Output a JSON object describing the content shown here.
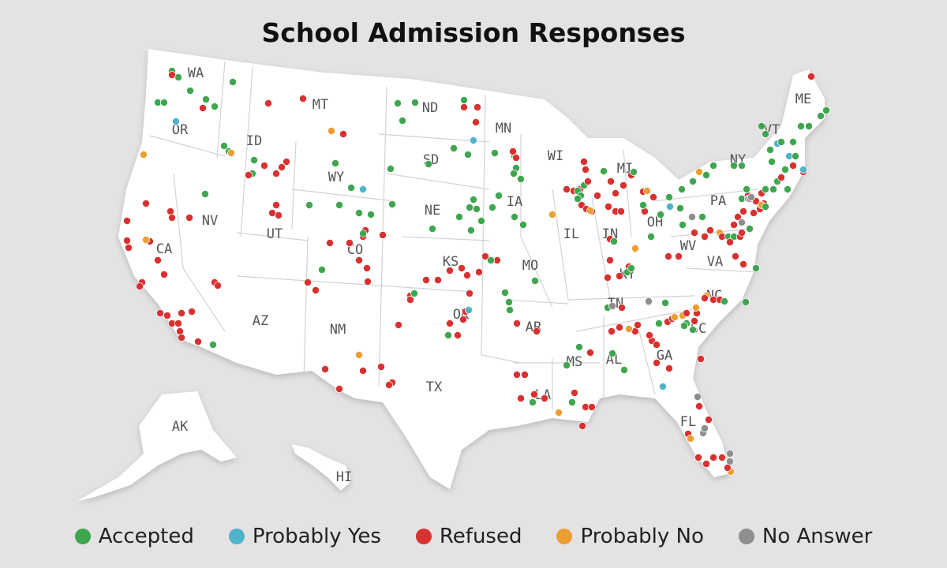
{
  "title": "School Admission Responses",
  "legend": [
    {
      "key": "accepted",
      "label": "Accepted",
      "color": "#3fa650"
    },
    {
      "key": "probably_yes",
      "label": "Probably Yes",
      "color": "#4fb3c9"
    },
    {
      "key": "refused",
      "label": "Refused",
      "color": "#d8312f"
    },
    {
      "key": "probably_no",
      "label": "Probably No",
      "color": "#eb9f33"
    },
    {
      "key": "no_answer",
      "label": "No Answer",
      "color": "#8e8e91"
    }
  ],
  "state_labels": [
    "WA",
    "OR",
    "ID",
    "MT",
    "ND",
    "MN",
    "WI",
    "MI",
    "ME",
    "VT",
    "NY",
    "SD",
    "WY",
    "NV",
    "CA",
    "UT",
    "CO",
    "NE",
    "IA",
    "IL",
    "IN",
    "OH",
    "PA",
    "KS",
    "MO",
    "KY",
    "WV",
    "VA",
    "AZ",
    "NM",
    "OK",
    "AR",
    "TN",
    "NC",
    "SC",
    "TX",
    "MS",
    "AL",
    "GA",
    "LA",
    "FL",
    "AK",
    "HI"
  ]
}
